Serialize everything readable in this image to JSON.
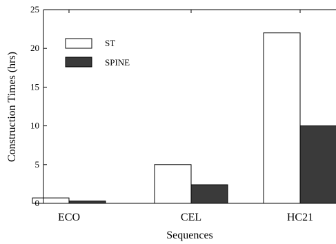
{
  "chart_data": {
    "type": "bar",
    "title": "",
    "xlabel": "Sequences",
    "ylabel": "Construction Times (hrs)",
    "categories": [
      "ECO",
      "CEL",
      "HC21"
    ],
    "series": [
      {
        "name": "ST",
        "values": [
          0.7,
          5.0,
          22.0
        ],
        "color": "#ffffff"
      },
      {
        "name": "SPINE",
        "values": [
          0.3,
          2.4,
          10.0
        ],
        "color": "#3a3a3a"
      }
    ],
    "ylim": [
      0,
      25
    ],
    "yticks": [
      0,
      5,
      10,
      15,
      20,
      25
    ],
    "grid": false,
    "legend_position": "top-left"
  }
}
